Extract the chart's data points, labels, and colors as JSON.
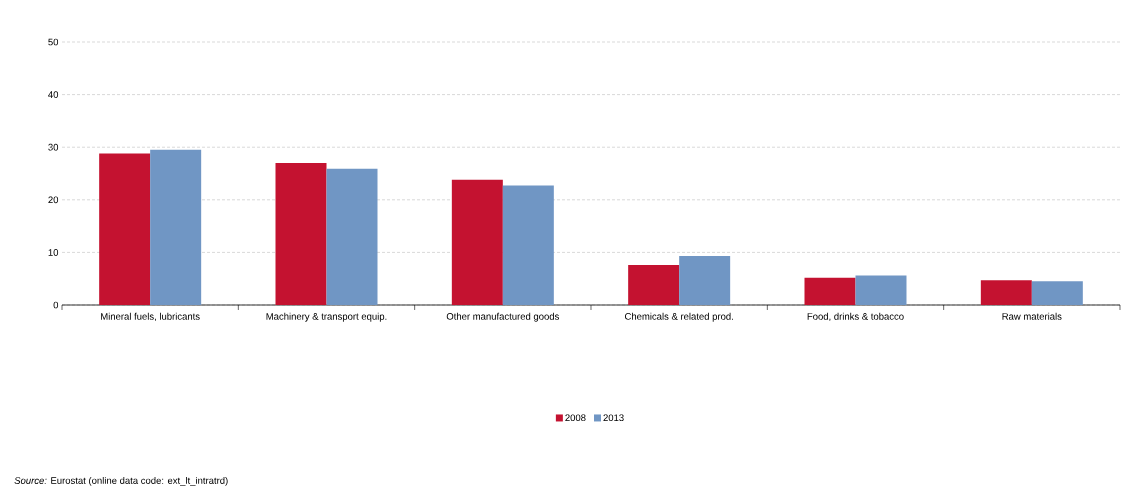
{
  "chart_data": {
    "type": "bar",
    "categories": [
      "Mineral fuels, lubricants",
      "Machinery & transport equip.",
      "Other manufactured goods",
      "Chemicals & related prod.",
      "Food, drinks & tobacco",
      "Raw materials"
    ],
    "series": [
      {
        "name": "2008",
        "color": "#c41230",
        "values": [
          28.8,
          27.0,
          23.8,
          7.6,
          5.2,
          4.7
        ]
      },
      {
        "name": "2013",
        "color": "#7096c4",
        "values": [
          29.5,
          25.9,
          22.7,
          9.3,
          5.6,
          4.5
        ]
      }
    ],
    "ylim": [
      0,
      50
    ],
    "yticks": [
      0,
      10,
      20,
      30,
      40,
      50
    ],
    "grid": "y",
    "legend": "bottom",
    "annotations": [
      "*Source:* Eurostat (online data code: ext_lt_intratrd)"
    ]
  }
}
